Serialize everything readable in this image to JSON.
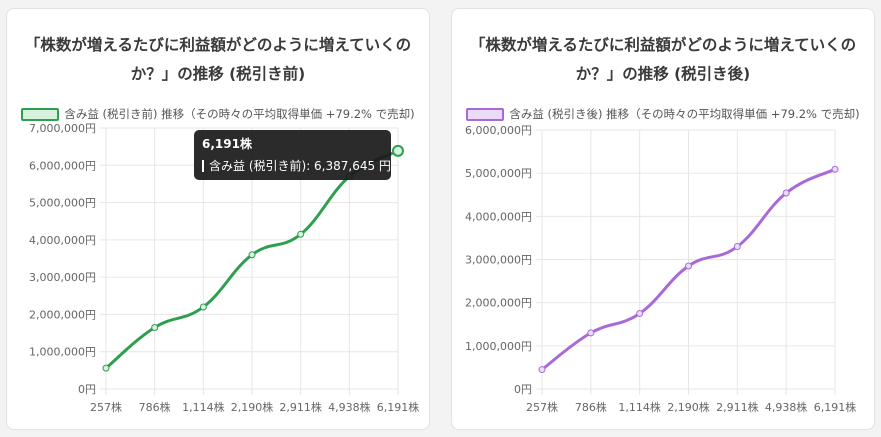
{
  "charts": [
    {
      "title": "「株数が増えるたびに利益額がどのように増えていくのか？」の推移 (税引き前)",
      "legend_label": "含み益 (税引き前) 推移（その時々の平均取得単価 +79.2% で売却)",
      "color": "#2e9e4f",
      "fill": "#d8f0de",
      "tooltip": {
        "title": "6,191株",
        "series_label": "含み益 (税引き前)",
        "value_text": "6,387,645 円"
      }
    },
    {
      "title": "「株数が増えるたびに利益額がどのように増えていくのか？」の推移 (税引き後)",
      "legend_label": "含み益 (税引き後) 推移（その時々の平均取得単価 +79.2% で売却)",
      "color": "#a86ad8",
      "fill": "#eadcf6"
    }
  ],
  "chart_data": [
    {
      "type": "line",
      "title": "「株数が増えるたびに利益額がどのように増えていくのか？」の推移 (税引き前)",
      "categories": [
        "257株",
        "786株",
        "1,114株",
        "2,190株",
        "2,911株",
        "4,938株",
        "6,191株"
      ],
      "series": [
        {
          "name": "含み益 (税引き前) 推移（その時々の平均取得単価 +79.2% で売却)",
          "values": [
            560000,
            1650000,
            2200000,
            3600000,
            4150000,
            5700000,
            6387645
          ]
        }
      ],
      "ylim": [
        0,
        7000000
      ],
      "yticks": [
        "0円",
        "1,000,000円",
        "2,000,000円",
        "3,000,000円",
        "4,000,000円",
        "5,000,000円",
        "6,000,000円",
        "7,000,000円"
      ],
      "grid": true,
      "legend": "top"
    },
    {
      "type": "line",
      "title": "「株数が増えるたびに利益額がどのように増えていくのか？」の推移 (税引き後)",
      "categories": [
        "257株",
        "786株",
        "1,114株",
        "2,190株",
        "2,911株",
        "4,938株",
        "6,191株"
      ],
      "series": [
        {
          "name": "含み益 (税引き後) 推移（その時々の平均取得単価 +79.2% で売却)",
          "values": [
            450000,
            1300000,
            1750000,
            2850000,
            3300000,
            4540000,
            5090000
          ]
        }
      ],
      "ylim": [
        0,
        6000000
      ],
      "yticks": [
        "0円",
        "1,000,000円",
        "2,000,000円",
        "3,000,000円",
        "4,000,000円",
        "5,000,000円",
        "6,000,000円"
      ],
      "grid": true,
      "legend": "top"
    }
  ]
}
